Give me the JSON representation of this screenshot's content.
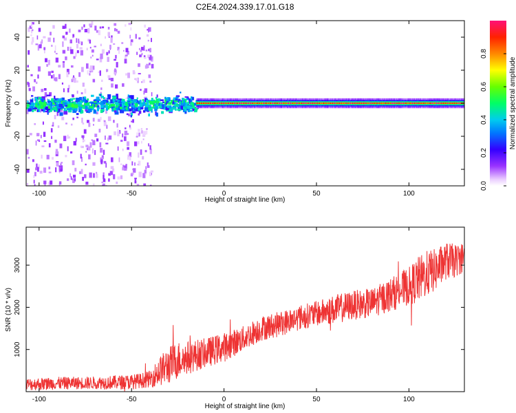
{
  "title": "C2E4.2024.339.17.01.G18",
  "colorbar": {
    "label": "Normalized spectral amplitude",
    "ticks": [
      "0.0",
      "0.2",
      "0.4",
      "0.6",
      "0.8"
    ],
    "tick_values": [
      0.0,
      0.2,
      0.4,
      0.6,
      0.8
    ]
  },
  "chart_data": [
    {
      "type": "heatmap",
      "xlabel": "Height of straight line (km)",
      "ylabel": "Frequency (Hz)",
      "xlim": [
        -107,
        130
      ],
      "ylim": [
        -50,
        50
      ],
      "xticks": [
        -100,
        -50,
        0,
        50,
        100
      ],
      "xtick_labels": [
        "-100",
        "-50",
        "0",
        "50",
        "100"
      ],
      "yticks": [
        -40,
        -20,
        0,
        20,
        40
      ],
      "ytick_labels": [
        "-40",
        "-20",
        "0",
        "20",
        "40"
      ],
      "zlim": [
        0,
        1
      ],
      "description_of_structure": {
        "strong_band_center_hz": 0,
        "noisy_region_x_range": [
          -107,
          -15
        ],
        "noisy_region_scatter_hz": [
          -50,
          50
        ],
        "stable_region_x_range": [
          -15,
          130
        ],
        "stable_band_halfwidth_hz": 2
      }
    },
    {
      "type": "line",
      "xlabel": "Height of straight line (km)",
      "ylabel": "SNR (10 * v/v)",
      "xlim": [
        -107,
        130
      ],
      "ylim": [
        0,
        3900
      ],
      "xticks": [
        -100,
        -50,
        0,
        50,
        100
      ],
      "xtick_labels": [
        "-100",
        "-50",
        "0",
        "50",
        "100"
      ],
      "yticks": [
        1000,
        2000,
        3000
      ],
      "ytick_labels": [
        "1000",
        "2000",
        "3000"
      ],
      "series": [
        {
          "color": "#ee3333",
          "trend_x": [
            -107,
            -90,
            -70,
            -50,
            -45,
            -40,
            -35,
            -30,
            -25,
            -20,
            -10,
            0,
            10,
            20,
            30,
            40,
            50,
            60,
            70,
            80,
            90,
            100,
            105,
            110,
            115,
            120,
            125,
            130
          ],
          "trend_y": [
            170,
            200,
            210,
            230,
            260,
            300,
            480,
            620,
            750,
            800,
            920,
            1050,
            1250,
            1500,
            1600,
            1750,
            1850,
            1950,
            2050,
            2100,
            2300,
            2500,
            2650,
            2800,
            2900,
            3100,
            3100,
            3200
          ],
          "noise_amplitude_y": [
            150,
            150,
            150,
            180,
            180,
            200,
            350,
            450,
            450,
            400,
            350,
            350,
            300,
            300,
            300,
            300,
            300,
            350,
            350,
            350,
            400,
            450,
            550,
            550,
            500,
            450,
            400,
            350
          ]
        }
      ]
    }
  ]
}
